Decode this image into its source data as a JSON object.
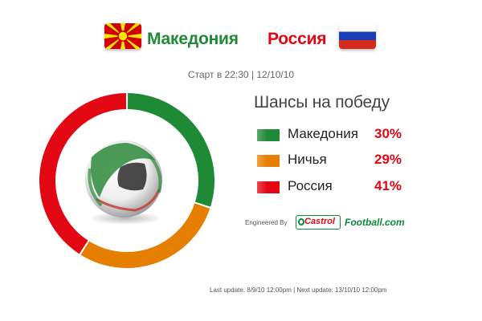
{
  "match": {
    "team1": "Македония",
    "team2": "Россия",
    "kickoff": "Старт в 22:30 | 12/10/10"
  },
  "chances": {
    "title": "Шансы на победу",
    "items": [
      {
        "label": "Македония",
        "percent_text": "30%",
        "value": 30,
        "color": "#1f8a36"
      },
      {
        "label": "Ничья",
        "percent_text": "29%",
        "value": 29,
        "color": "#e67e00"
      },
      {
        "label": "Россия",
        "percent_text": "41%",
        "value": 41,
        "color": "#e30613"
      }
    ]
  },
  "branding": {
    "engineered_by": "Engineered By",
    "castrol": "Castrol",
    "football_com": "Football.com"
  },
  "footer": {
    "updates": "Last update: 8/9/10 12:00pm | Next update: 13/10/10 12:00pm"
  },
  "chart_data": {
    "type": "pie",
    "categories": [
      "Македония",
      "Ничья",
      "Россия"
    ],
    "values": [
      30,
      29,
      41
    ],
    "colors": [
      "#1f8a36",
      "#e67e00",
      "#e30613"
    ],
    "title": "Шансы на победу",
    "legend": "right"
  },
  "icons": {
    "flag_left": "macedonia-flag-icon",
    "flag_right": "russia-flag-icon",
    "center": "soccer-ball-icon"
  }
}
